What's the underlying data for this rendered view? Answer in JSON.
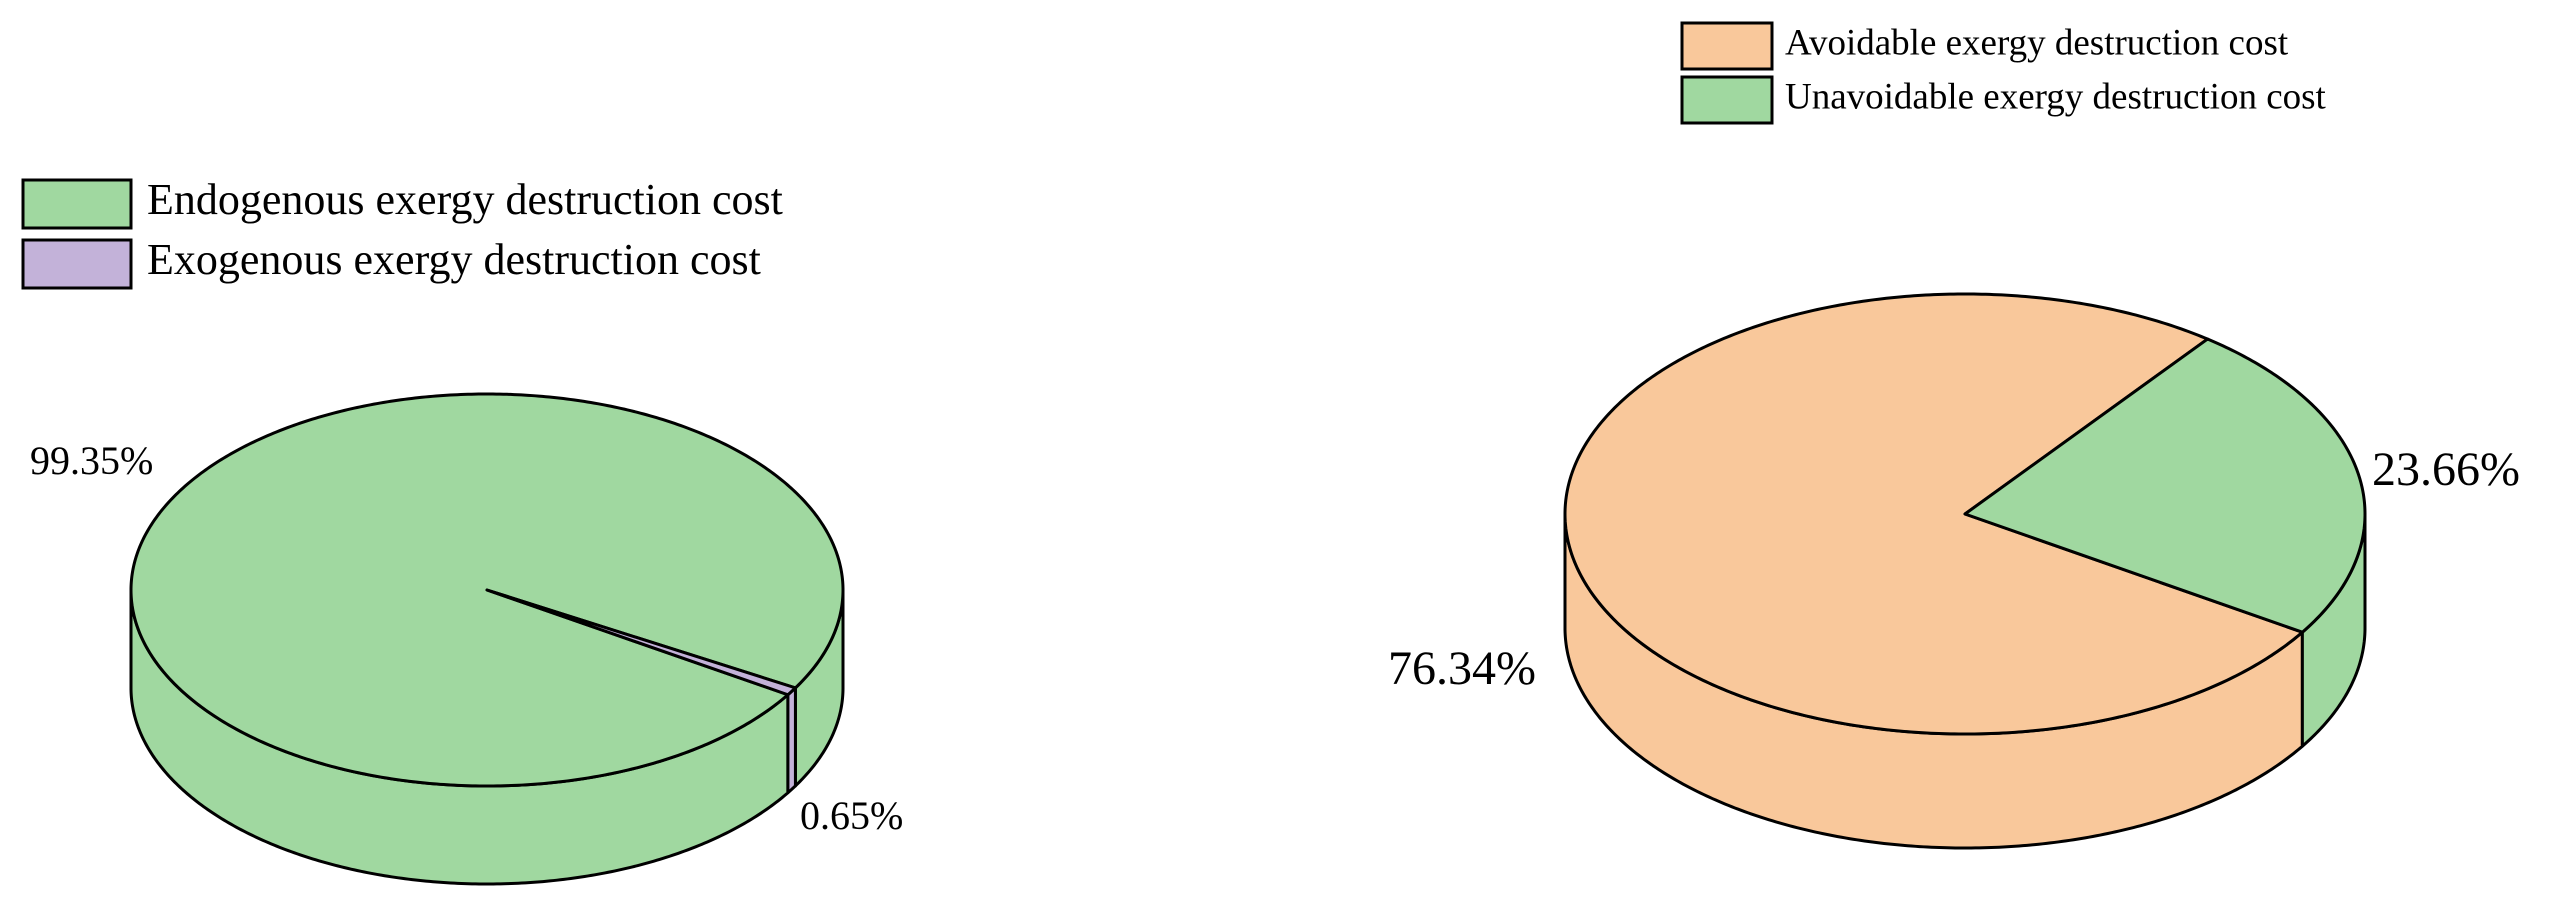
{
  "chart_data": [
    {
      "type": "pie",
      "categories": [
        "Endogenous exergy destruction cost",
        "Exogenous exergy destruction cost"
      ],
      "values": [
        99.35,
        0.65
      ],
      "value_labels": [
        "99.35%",
        "0.65%"
      ],
      "colors": [
        "#a0d8a0",
        "#c3b2d9"
      ]
    },
    {
      "type": "pie",
      "categories": [
        "Avoidable exergy destruction cost",
        "Unavoidable exergy destruction cost"
      ],
      "values": [
        76.34,
        23.66
      ],
      "value_labels": [
        "76.34%",
        "23.66%"
      ],
      "colors": [
        "#f9c89b",
        "#a0d8a0"
      ]
    }
  ]
}
